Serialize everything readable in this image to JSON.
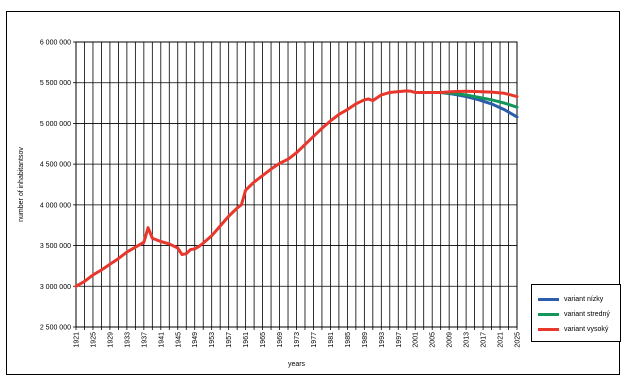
{
  "chart_data": {
    "type": "line",
    "title": "",
    "xlabel": "years",
    "ylabel": "number of inhabitantsov",
    "ylim": [
      2500000,
      6000000
    ],
    "y_ticks": [
      2500000,
      3000000,
      3500000,
      4000000,
      4500000,
      5000000,
      5500000,
      6000000
    ],
    "y_tick_labels": [
      "2 500 000",
      "3 000 000",
      "3 500 000",
      "4 000 000",
      "4 500 000",
      "5 000 000",
      "5 500 000",
      "6 000 000"
    ],
    "xlim": [
      1921,
      2025
    ],
    "x_tick_labels": [
      "1921",
      "1925",
      "1929",
      "1933",
      "1937",
      "1941",
      "1945",
      "1949",
      "1953",
      "1957",
      "1961",
      "1965",
      "1969",
      "1973",
      "1977",
      "1981",
      "1985",
      "1989",
      "1993",
      "1997",
      "2001",
      "2005",
      "2009",
      "2013",
      "2017",
      "2021",
      "2025"
    ],
    "grid": true,
    "legend_position": "right",
    "historical": {
      "x": [
        1921,
        1923,
        1925,
        1927,
        1929,
        1931,
        1933,
        1935,
        1937,
        1938,
        1939,
        1940,
        1941,
        1943,
        1945,
        1946,
        1947,
        1948,
        1949,
        1950,
        1951,
        1953,
        1955,
        1957,
        1959,
        1960,
        1961,
        1962,
        1963,
        1965,
        1967,
        1969,
        1971,
        1973,
        1975,
        1977,
        1979,
        1981,
        1983,
        1985,
        1987,
        1989,
        1990,
        1991,
        1993,
        1995,
        1997,
        1999,
        2000,
        2001,
        2003,
        2005,
        2007
      ],
      "y": [
        3000000,
        3060000,
        3140000,
        3200000,
        3270000,
        3340000,
        3420000,
        3480000,
        3540000,
        3720000,
        3590000,
        3570000,
        3550000,
        3520000,
        3470000,
        3390000,
        3400000,
        3450000,
        3460000,
        3490000,
        3530000,
        3620000,
        3740000,
        3860000,
        3960000,
        4000000,
        4180000,
        4230000,
        4280000,
        4360000,
        4440000,
        4510000,
        4560000,
        4640000,
        4740000,
        4840000,
        4940000,
        5030000,
        5110000,
        5170000,
        5240000,
        5290000,
        5300000,
        5280000,
        5350000,
        5380000,
        5390000,
        5400000,
        5395000,
        5380000,
        5380000,
        5380000,
        5380000
      ]
    },
    "series": [
      {
        "name": "variant nízky",
        "color": "#2b5dab",
        "x": [
          2007,
          2010,
          2013,
          2016,
          2019,
          2022,
          2025
        ],
        "y": [
          5380000,
          5360000,
          5330000,
          5290000,
          5240000,
          5170000,
          5080000
        ]
      },
      {
        "name": "variant stredný",
        "color": "#12965a",
        "x": [
          2007,
          2010,
          2013,
          2016,
          2019,
          2022,
          2025
        ],
        "y": [
          5380000,
          5370000,
          5350000,
          5320000,
          5290000,
          5250000,
          5200000
        ]
      },
      {
        "name": "variant vysoký",
        "color": "#e8372c",
        "x": [
          2007,
          2010,
          2013,
          2016,
          2019,
          2022,
          2025
        ],
        "y": [
          5380000,
          5390000,
          5395000,
          5390000,
          5385000,
          5370000,
          5330000
        ]
      }
    ]
  }
}
